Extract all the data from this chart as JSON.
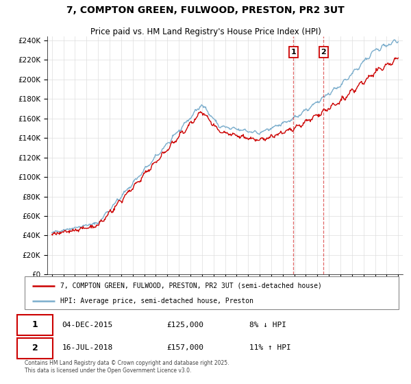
{
  "title": "7, COMPTON GREEN, FULWOOD, PRESTON, PR2 3UT",
  "subtitle": "Price paid vs. HM Land Registry's House Price Index (HPI)",
  "red_label": "7, COMPTON GREEN, FULWOOD, PRESTON, PR2 3UT (semi-detached house)",
  "blue_label": "HPI: Average price, semi-detached house, Preston",
  "footnote": "Contains HM Land Registry data © Crown copyright and database right 2025.\nThis data is licensed under the Open Government Licence v3.0.",
  "marker1_date": "04-DEC-2015",
  "marker1_price": "£125,000",
  "marker1_hpi": "8% ↓ HPI",
  "marker2_date": "16-JUL-2018",
  "marker2_price": "£157,000",
  "marker2_hpi": "11% ↑ HPI",
  "marker1_x": 2015.92,
  "marker2_x": 2018.54,
  "ylim": [
    0,
    244000
  ],
  "xlim": [
    1994.6,
    2025.4
  ],
  "red_color": "#cc0000",
  "blue_color": "#7aadcc",
  "grid_color": "#dddddd",
  "marker_box_color": "#cc0000"
}
